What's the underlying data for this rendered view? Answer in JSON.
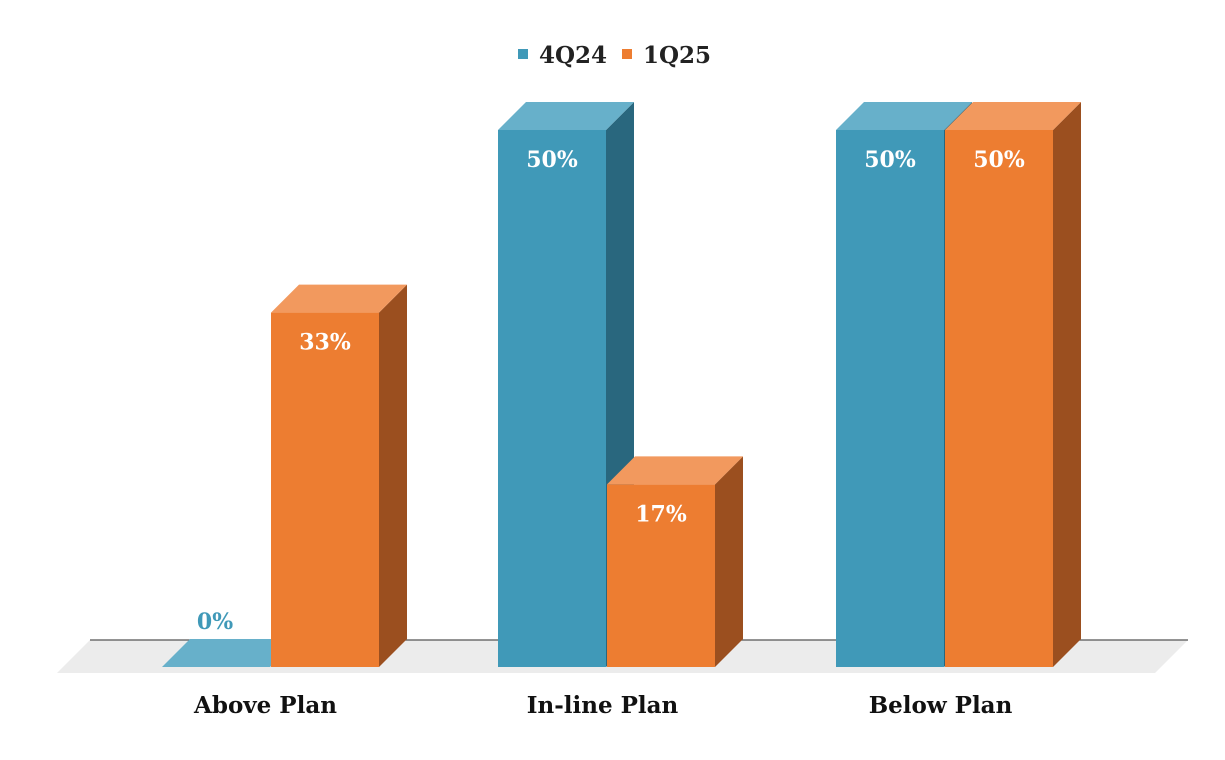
{
  "chart_data": {
    "type": "bar",
    "categories": [
      "Above Plan",
      "In-line Plan",
      "Below Plan"
    ],
    "series": [
      {
        "name": "4Q24",
        "values": [
          0,
          50,
          50
        ],
        "labels": [
          "0%",
          "50%",
          "50%"
        ]
      },
      {
        "name": "1Q25",
        "values": [
          33,
          17,
          50
        ],
        "labels": [
          "33%",
          "17%",
          "50%"
        ]
      }
    ],
    "ylim": [
      0,
      50
    ],
    "grid": false,
    "legend_position": "top-center",
    "style": "3d-column",
    "colors": {
      "4Q24": {
        "front": "#4099b8",
        "top": "#67b0ca",
        "side": "#29677e"
      },
      "1Q25": {
        "front": "#ed7d31",
        "top": "#f2995e",
        "side": "#9b4f1f"
      },
      "floor": "#ececec",
      "axis": "#555555"
    }
  }
}
